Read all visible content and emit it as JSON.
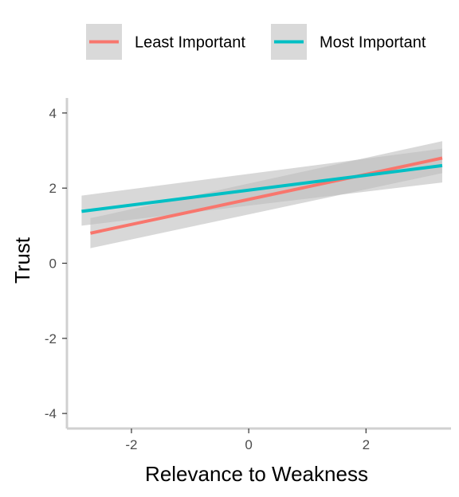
{
  "chart_data": {
    "type": "line",
    "title": "",
    "xlabel": "Relevance to Weakness",
    "ylabel": "Trust",
    "xlim": [
      -3.1,
      3.45
    ],
    "ylim": [
      -4.4,
      4.4
    ],
    "x_ticks": [
      -2,
      0,
      2
    ],
    "y_ticks": [
      -4,
      -2,
      0,
      2,
      4
    ],
    "grid": false,
    "legend_position": "top",
    "series": [
      {
        "name": "Least Important",
        "color": "#F8766D",
        "x": [
          -2.7,
          3.3
        ],
        "y": [
          0.8,
          2.8
        ],
        "ci_lower": [
          0.4,
          2.4
        ],
        "ci_upper": [
          1.2,
          3.25
        ]
      },
      {
        "name": "Most Important",
        "color": "#00BFC4",
        "x": [
          -2.85,
          3.3
        ],
        "y": [
          1.38,
          2.6
        ],
        "ci_lower": [
          1.0,
          2.15
        ],
        "ci_upper": [
          1.8,
          3.05
        ]
      }
    ],
    "ci_color": "#bebebe"
  }
}
